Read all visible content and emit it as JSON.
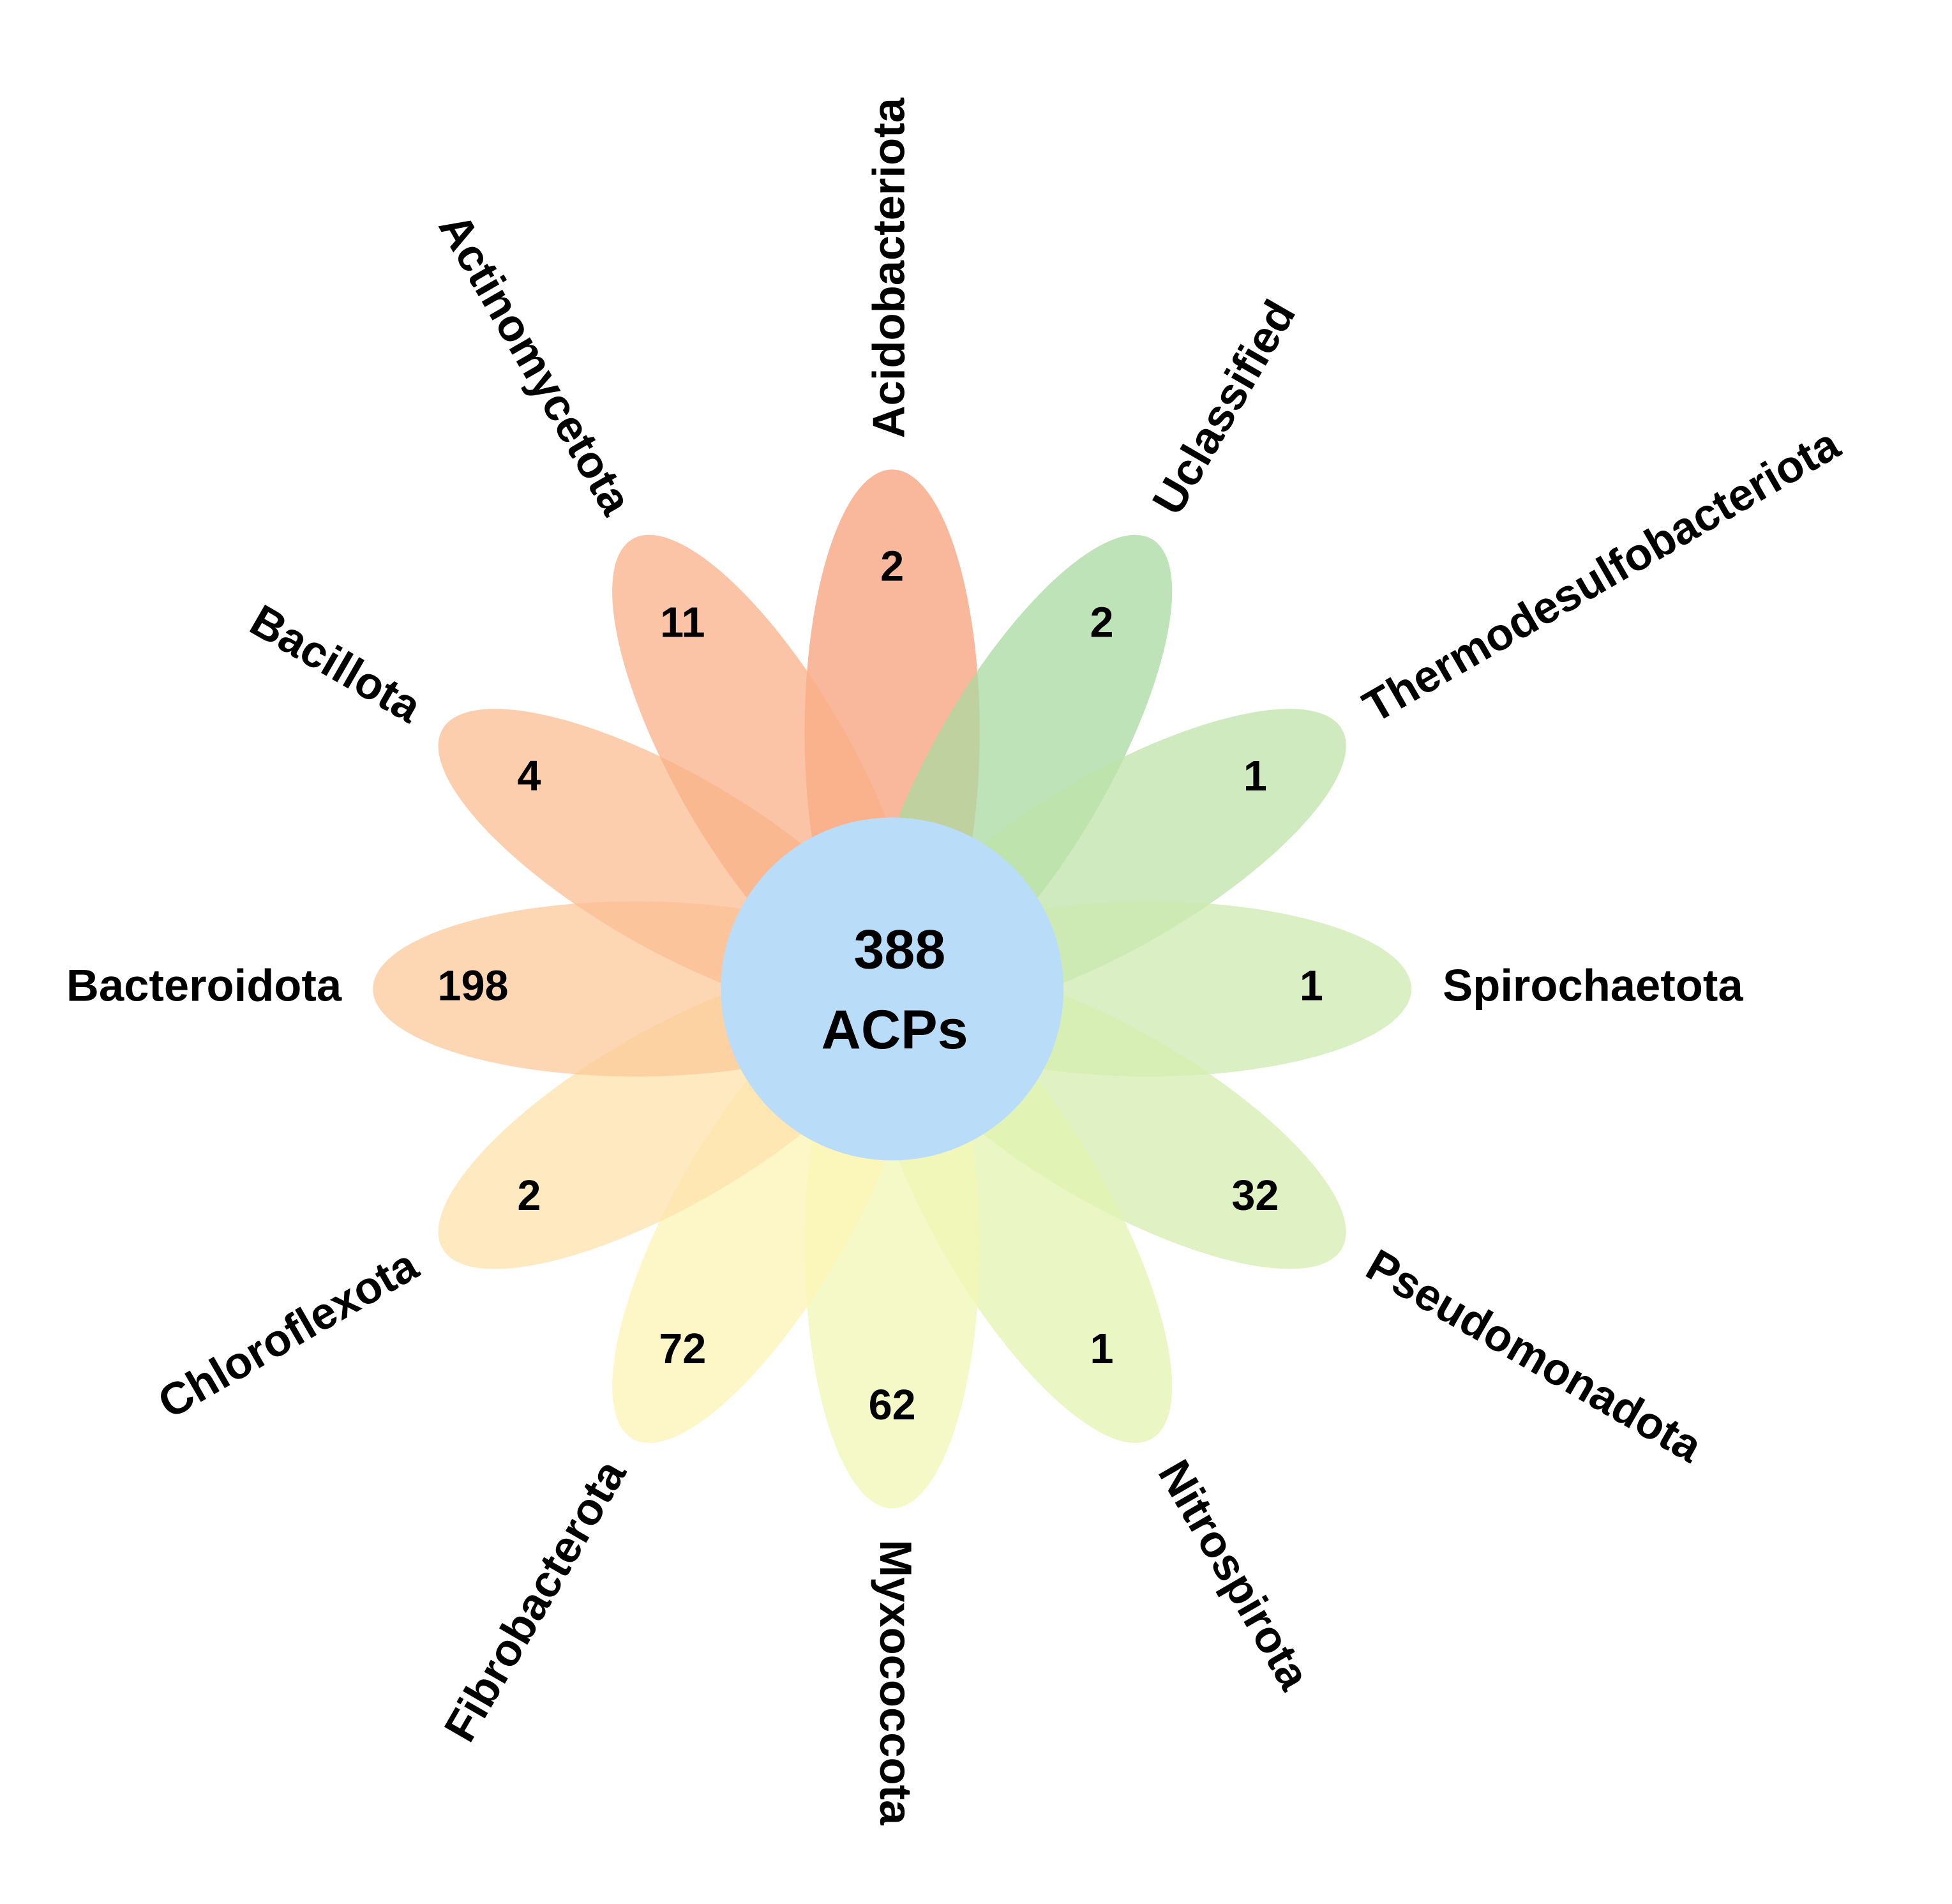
{
  "center": {
    "value": 388,
    "label": "ACPs",
    "color": "#b9dcf8"
  },
  "petals": [
    {
      "name": "Acidobacteriota",
      "value": 2,
      "color": "#f7a07a"
    },
    {
      "name": "Uclassified",
      "value": 2,
      "color": "#a9d9a0"
    },
    {
      "name": "Thermodesulfobacteriota",
      "value": 1,
      "color": "#bfe3a8"
    },
    {
      "name": "Spirochaetota",
      "value": 1,
      "color": "#cde9b0"
    },
    {
      "name": "Pseudomonadota",
      "value": 32,
      "color": "#d6edb0"
    },
    {
      "name": "Nitrospirota",
      "value": 1,
      "color": "#e3f4b0"
    },
    {
      "name": "Myxococcota",
      "value": 62,
      "color": "#f1f7b4"
    },
    {
      "name": "Fibrobacterota",
      "value": 72,
      "color": "#fcf4b4"
    },
    {
      "name": "Chloroflexota",
      "value": 2,
      "color": "#fde1ab"
    },
    {
      "name": "Bacteroidota",
      "value": 198,
      "color": "#fcc99a"
    },
    {
      "name": "Bacillota",
      "value": 4,
      "color": "#fbbe92"
    },
    {
      "name": "Actinomycetota",
      "value": 11,
      "color": "#f9b088"
    }
  ]
}
